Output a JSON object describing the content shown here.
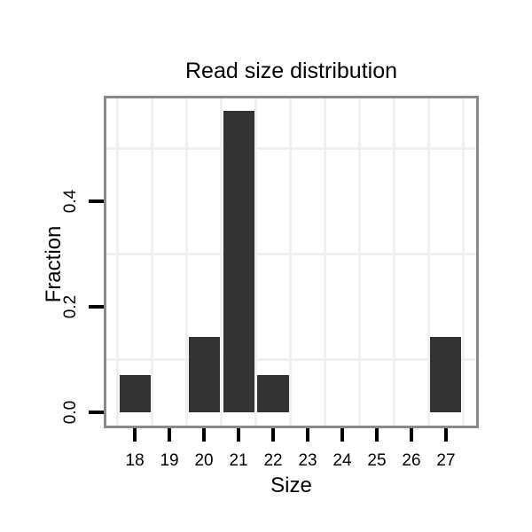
{
  "chart_data": {
    "type": "bar",
    "title": "Read size distribution",
    "xlabel": "Size",
    "ylabel": "Fraction",
    "categories": [
      18,
      19,
      20,
      21,
      22,
      23,
      24,
      25,
      26,
      27
    ],
    "values": [
      0.0714,
      0,
      0.1429,
      0.5714,
      0.0714,
      0,
      0,
      0,
      0,
      0.1429
    ],
    "x_tick_labels": [
      "18",
      "19",
      "20",
      "21",
      "22",
      "23",
      "24",
      "25",
      "26",
      "27"
    ],
    "y_ticks": [
      {
        "value": 0.0,
        "label": "0.0"
      },
      {
        "value": 0.2,
        "label": "0.2"
      },
      {
        "value": 0.4,
        "label": "0.4"
      }
    ],
    "xlim": [
      17.1,
      27.95
    ],
    "ylim": [
      -0.03,
      0.6
    ],
    "bar_width": 0.9,
    "grid": {
      "x_minor": [
        17.5,
        18.5,
        19.5,
        20.5,
        21.5,
        22.5,
        23.5,
        24.5,
        25.5,
        26.5,
        27.5
      ],
      "y_minor": [
        0.1,
        0.3,
        0.5
      ]
    },
    "legend": "none",
    "colors": {
      "bar": "#333333",
      "panel_border": "#8a8a8a",
      "gridline": "#f0f0f0",
      "tick": "#000000",
      "text": "#000000",
      "background": "#ffffff"
    }
  }
}
